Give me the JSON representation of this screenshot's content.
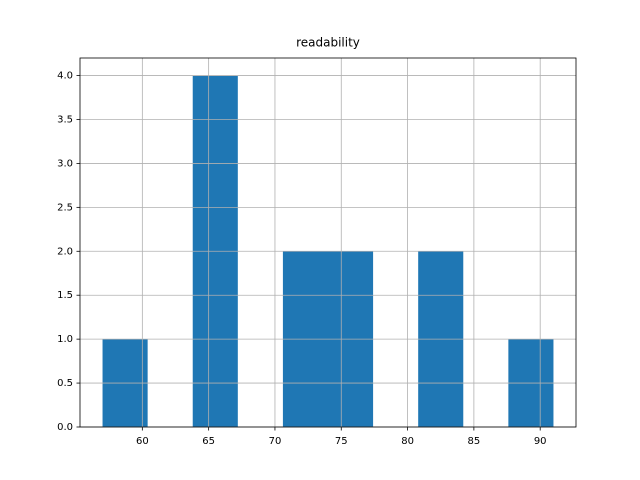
{
  "chart_data": {
    "type": "histogram",
    "title": "readability",
    "bins": [
      57,
      60.4,
      63.8,
      67.2,
      70.6,
      74,
      77.4,
      80.8,
      84.2,
      87.6,
      91
    ],
    "values": [
      1,
      0,
      4,
      0,
      2,
      2,
      0,
      2,
      0,
      1
    ],
    "color": "#1f77b4",
    "xlim": [
      55.3,
      92.7
    ],
    "xticks": [
      60,
      65,
      70,
      75,
      80,
      85,
      90
    ],
    "ylim": [
      0,
      4.2
    ],
    "yticks": [
      {
        "value": 0,
        "label": "0.0"
      },
      {
        "value": 0.5,
        "label": "0.5"
      },
      {
        "value": 1,
        "label": "1.0"
      },
      {
        "value": 1.5,
        "label": "1.5"
      },
      {
        "value": 2,
        "label": "2.0"
      },
      {
        "value": 2.5,
        "label": "2.5"
      },
      {
        "value": 3,
        "label": "3.0"
      },
      {
        "value": 3.5,
        "label": "3.5"
      },
      {
        "value": 4,
        "label": "4.0"
      }
    ],
    "grid": true
  }
}
